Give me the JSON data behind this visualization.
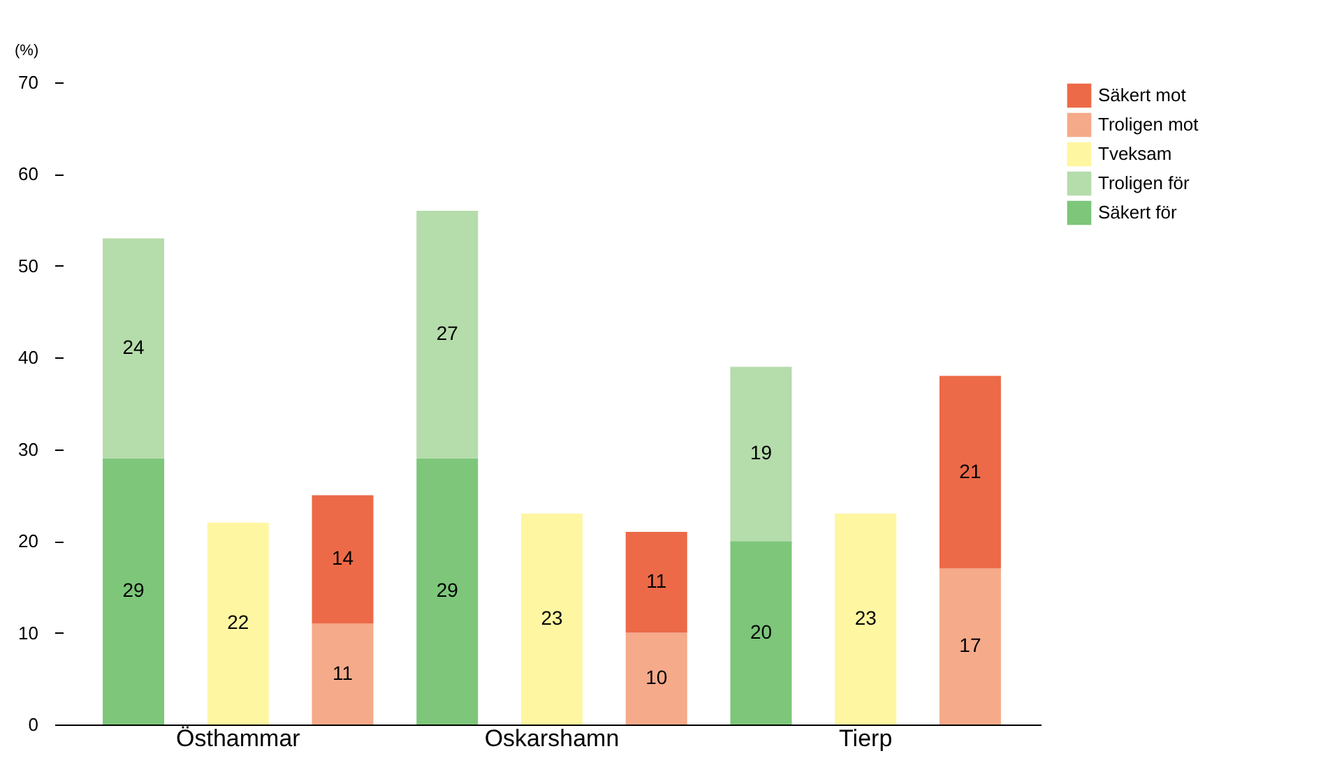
{
  "chart_data": {
    "type": "bar",
    "stacked": true,
    "ylabel": "(%)",
    "categories": [
      null,
      "Östhammar",
      null,
      null,
      "Oskarshamn",
      null,
      null,
      "Tierp",
      null
    ],
    "series": [
      {
        "name": "Säkert för",
        "color": "#7dc67a",
        "values": [
          29,
          null,
          null,
          29,
          null,
          null,
          20,
          null,
          null
        ]
      },
      {
        "name": "Troligen för",
        "color": "#b5dcab",
        "values": [
          24,
          null,
          null,
          27,
          null,
          null,
          19,
          null,
          null
        ]
      },
      {
        "name": "Tveksam",
        "color": "#fff6a2",
        "values": [
          null,
          22,
          null,
          null,
          23,
          null,
          null,
          23,
          null
        ]
      },
      {
        "name": "Troligen mot",
        "color": "#f5aa8a",
        "values": [
          null,
          null,
          11,
          null,
          null,
          10,
          null,
          null,
          17
        ]
      },
      {
        "name": "Säkert mot",
        "color": "#ec6a48",
        "values": [
          null,
          null,
          14,
          null,
          null,
          11,
          null,
          null,
          21
        ]
      }
    ],
    "ylim": [
      0,
      70
    ],
    "yticks": [
      0,
      10,
      20,
      30,
      40,
      50,
      60,
      70
    ],
    "data_labels": true,
    "legend": "right",
    "grid": false
  }
}
